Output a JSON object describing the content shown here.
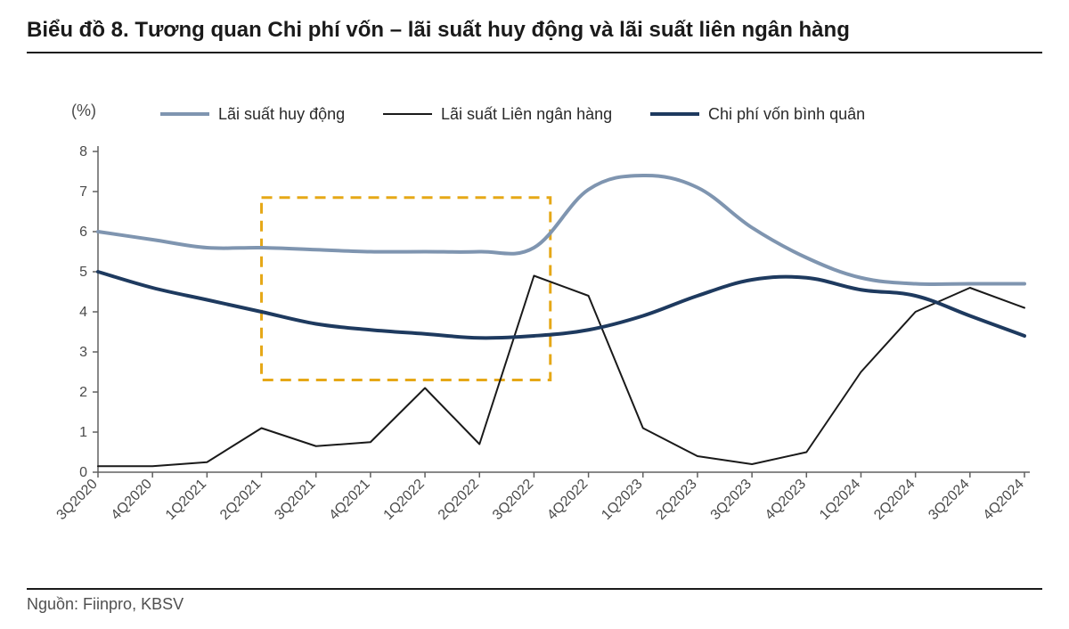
{
  "title": "Biểu đồ 8. Tương quan Chi phí vốn – lãi suất huy động và lãi suất liên ngân hàng",
  "source": "Nguồn: Fiinpro, KBSV",
  "chart": {
    "type": "line",
    "y_unit_label": "(%)",
    "background_color": "#ffffff",
    "axis_color": "#606060",
    "tick_font_size": 16,
    "legend_font_size": 18,
    "ylim": [
      0,
      8
    ],
    "ytick_step": 1,
    "yticks": [
      0,
      1,
      2,
      3,
      4,
      5,
      6,
      7,
      8
    ],
    "categories": [
      "3Q2020",
      "4Q2020",
      "1Q2021",
      "2Q2021",
      "3Q2021",
      "4Q2021",
      "1Q2022",
      "2Q2022",
      "3Q2022",
      "4Q2022",
      "1Q2023",
      "2Q2023",
      "3Q2023",
      "4Q2023",
      "1Q2024",
      "2Q2024",
      "3Q2024",
      "4Q2024"
    ],
    "series": [
      {
        "name": "Lãi suất huy động",
        "color": "#7f95b0",
        "line_width": 4,
        "values": [
          6.0,
          5.8,
          5.6,
          5.6,
          5.55,
          5.5,
          5.5,
          5.5,
          5.6,
          7.05,
          7.4,
          7.1,
          6.1,
          5.35,
          4.85,
          4.7,
          4.7,
          4.7
        ]
      },
      {
        "name": "Lãi suất Liên ngân hàng",
        "color": "#1a1a1a",
        "line_width": 2,
        "values": [
          0.15,
          0.15,
          0.25,
          1.1,
          0.65,
          0.75,
          2.1,
          0.7,
          4.9,
          4.4,
          1.1,
          0.4,
          0.2,
          0.5,
          2.5,
          4.0,
          4.6,
          4.1
        ]
      },
      {
        "name": "Chi phí vốn bình quân",
        "color": "#1e3a5f",
        "line_width": 4,
        "values": [
          5.0,
          4.6,
          4.3,
          4.0,
          3.7,
          3.55,
          3.45,
          3.35,
          3.4,
          3.55,
          3.9,
          4.4,
          4.8,
          4.85,
          4.55,
          4.4,
          3.9,
          3.4
        ]
      }
    ],
    "highlight_box": {
      "color": "#e6a817",
      "dash": "12,8",
      "line_width": 3,
      "x_start_index": 3,
      "x_end_index": 8.3,
      "y_min": 2.3,
      "y_max": 6.85
    }
  }
}
